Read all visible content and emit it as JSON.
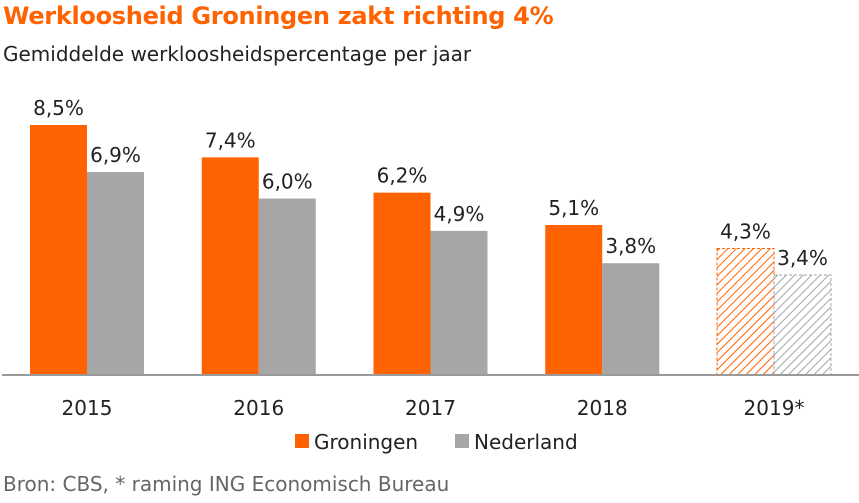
{
  "title": "Werkloosheid Groningen zakt richting 4%",
  "subtitle": "Gemiddelde werkloosheidspercentage per jaar",
  "source": "Bron: CBS, * raming ING Economisch Bureau",
  "colors": {
    "groningen": "#ff6200",
    "nederland": "#a6a6a6"
  },
  "chart_data": {
    "type": "bar",
    "title": "Werkloosheid Groningen zakt richting 4%",
    "subtitle": "Gemiddelde werkloosheidspercentage per jaar",
    "categories": [
      "2015",
      "2016",
      "2017",
      "2018",
      "2019*"
    ],
    "series": [
      {
        "name": "Groningen",
        "values": [
          8.5,
          7.4,
          6.2,
          5.1,
          4.3
        ],
        "labels": [
          "8,5%",
          "7,4%",
          "6,2%",
          "5,1%",
          "4,3%"
        ]
      },
      {
        "name": "Nederland",
        "values": [
          6.9,
          6.0,
          4.9,
          3.8,
          3.4
        ],
        "labels": [
          "6,9%",
          "6,0%",
          "4,9%",
          "3,8%",
          "3,4%"
        ]
      }
    ],
    "estimated_categories": [
      "2019*"
    ],
    "ylim": [
      0,
      8.5
    ],
    "grid": false,
    "legend": "bottom-center"
  }
}
